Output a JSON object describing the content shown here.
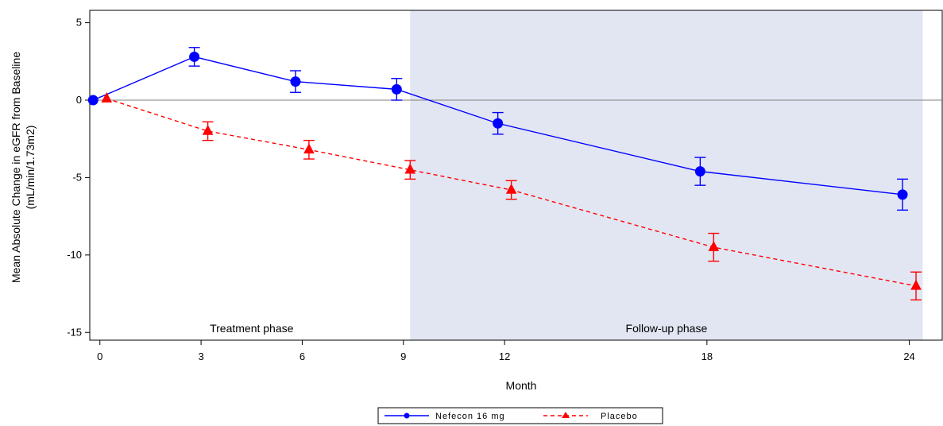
{
  "chart_data": {
    "type": "line",
    "xlabel": "Month",
    "ylabel_lines": [
      "Mean Absolute Change in eGFR from Baseline",
      "(mL/min/1.73m2)"
    ],
    "x_ticks": [
      0,
      3,
      6,
      9,
      12,
      18,
      24
    ],
    "y_ticks": [
      5,
      0,
      -5,
      -10,
      -15
    ],
    "xlim": [
      -0.3,
      25
    ],
    "ylim": [
      -15.5,
      5.8
    ],
    "reference_line_y": 0,
    "phases": [
      {
        "label": "Treatment phase",
        "start": -0.3,
        "end": 9.2,
        "shaded": false,
        "color": "#ffffff"
      },
      {
        "label": "Follow-up phase",
        "start": 9.2,
        "end": 24.4,
        "shaded": true,
        "color": "#e2e6f3"
      }
    ],
    "series": [
      {
        "name": "Nefecon 16 mg",
        "color": "#0000ff",
        "marker": "circle",
        "line_style": "solid",
        "x": [
          -0.2,
          2.8,
          5.8,
          8.8,
          11.8,
          17.8,
          23.8
        ],
        "y": [
          0.0,
          2.8,
          1.2,
          0.7,
          -1.5,
          -4.6,
          -6.1
        ],
        "error": [
          0,
          0.6,
          0.7,
          0.7,
          0.7,
          0.9,
          1.0
        ]
      },
      {
        "name": "Placebo",
        "color": "#ff0000",
        "marker": "triangle",
        "line_style": "dashed",
        "x": [
          0.2,
          3.2,
          6.2,
          9.2,
          12.2,
          18.2,
          24.2
        ],
        "y": [
          0.1,
          -2.0,
          -3.2,
          -4.5,
          -5.8,
          -9.5,
          -12.0
        ],
        "error": [
          0,
          0.6,
          0.6,
          0.6,
          0.6,
          0.9,
          0.9
        ]
      }
    ],
    "legend": {
      "position": "bottom-center"
    }
  }
}
